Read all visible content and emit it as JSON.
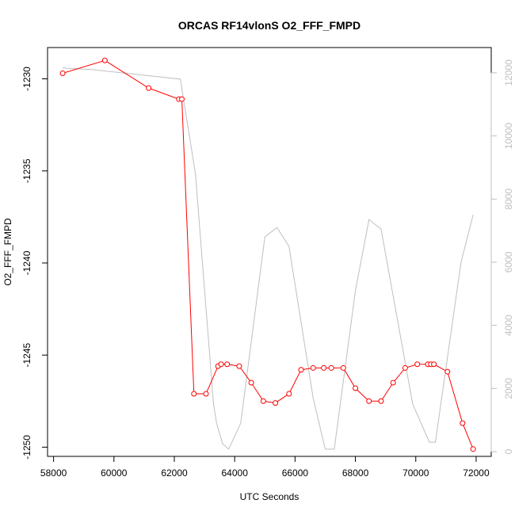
{
  "chart_data": {
    "type": "line",
    "title": "ORCAS RF14vlonS O2_FFF_FMPD",
    "xlabel": "UTC Seconds",
    "ylabel": "O2_FFF_FMPD",
    "xlim": [
      57800,
      72500
    ],
    "ylim": [
      -1250.5,
      -1228.3
    ],
    "y2lim": [
      -150,
      12800
    ],
    "x_ticks": [
      58000,
      60000,
      62000,
      64000,
      66000,
      68000,
      70000,
      72000
    ],
    "x_tick_labels": [
      "58000",
      "60000",
      "62000",
      "64000",
      "66000",
      "68000",
      "70000",
      "72000"
    ],
    "y_ticks": [
      -1230,
      -1235,
      -1240,
      -1245,
      -1250
    ],
    "y_tick_labels": [
      "-1230",
      "-1235",
      "-1240",
      "-1245",
      "-1250"
    ],
    "y2_ticks": [
      0,
      2000,
      4000,
      6000,
      8000,
      10000,
      12000
    ],
    "y2_tick_labels": [
      "0",
      "2000",
      "4000",
      "6000",
      "8000",
      "10000",
      "12000"
    ],
    "colors": {
      "primary": "#ff0000",
      "secondary": "#bfbfbf",
      "frame": "#000000"
    },
    "series": [
      {
        "axis": "left",
        "style": "line+points",
        "x": [
          58300,
          59700,
          61150,
          62150,
          62250,
          62650,
          63050,
          63450,
          63550,
          63750,
          64150,
          64550,
          64950,
          65350,
          65800,
          66200,
          66600,
          66950,
          67200,
          67600,
          68000,
          68450,
          68850,
          69250,
          69650,
          70050,
          70400,
          70500,
          70600,
          71050,
          71550,
          71900
        ],
        "y": [
          -1229.7,
          -1229.0,
          -1230.5,
          -1231.1,
          -1231.1,
          -1247.1,
          -1247.1,
          -1245.6,
          -1245.5,
          -1245.5,
          -1245.6,
          -1246.5,
          -1247.5,
          -1247.6,
          -1247.1,
          -1245.8,
          -1245.7,
          -1245.7,
          -1245.7,
          -1245.7,
          -1246.8,
          -1247.5,
          -1247.5,
          -1246.5,
          -1245.7,
          -1245.5,
          -1245.5,
          -1245.5,
          -1245.5,
          -1245.9,
          -1248.7,
          -1250.1
        ]
      },
      {
        "axis": "right",
        "style": "line",
        "x": [
          58300,
          59300,
          62200,
          62700,
          63300,
          63400,
          63600,
          63800,
          64200,
          65000,
          65400,
          65800,
          66600,
          67000,
          67300,
          68000,
          68450,
          68850,
          69900,
          70450,
          70650,
          71500,
          71900
        ],
        "y": [
          12150,
          12100,
          11800,
          8800,
          1500,
          900,
          250,
          80,
          900,
          6800,
          7100,
          6500,
          1700,
          80,
          80,
          5100,
          7350,
          7050,
          1500,
          300,
          300,
          6000,
          7500
        ]
      }
    ]
  }
}
